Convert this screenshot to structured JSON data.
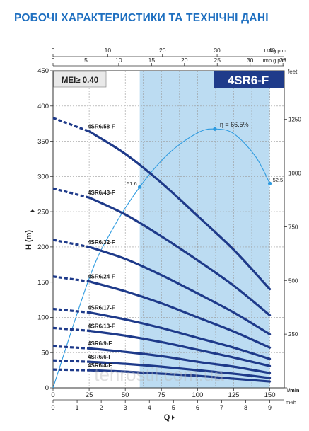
{
  "page": {
    "title": "РОБОЧІ ХАРАКТЕРИСТИКИ ТА ТЕХНІЧНІ ДАНІ",
    "watermark": "tehrostil.com.ua"
  },
  "chart_data": {
    "type": "line",
    "title": "4SR6-F",
    "badge": "MEI≥ 0.40",
    "ylabel": "H (m)",
    "xlabel": "Q",
    "ylim": [
      0,
      450
    ],
    "yticks": [
      0,
      50,
      100,
      150,
      200,
      250,
      300,
      350,
      400,
      450
    ],
    "xlim": [
      0,
      160
    ],
    "xticks": [
      0,
      25,
      50,
      75,
      100,
      125,
      150
    ],
    "xunit": "l/min",
    "x_m3h": {
      "unit": "m³/h",
      "ticks": [
        0,
        1,
        2,
        3,
        4,
        5,
        6,
        7,
        8,
        9
      ]
    },
    "x_usgpm": {
      "unit": "US g.p.m.",
      "ticks": [
        0,
        10,
        20,
        30,
        40
      ],
      "per_lpm": 0.2642
    },
    "x_impgpm": {
      "unit": "Imp g.p.m.",
      "ticks": [
        0,
        5,
        10,
        15,
        20,
        25,
        30,
        35
      ],
      "per_lpm": 0.22
    },
    "y_feet": {
      "unit": "feet",
      "ticks": [
        0,
        250,
        500,
        750,
        1000,
        1250
      ],
      "per_m": 3.2808
    },
    "recommended_range": [
      60,
      150
    ],
    "series": [
      {
        "name": "4SR6/58-F",
        "dashed_to": 25,
        "x": [
          0,
          25,
          50,
          75,
          100,
          125,
          150
        ],
        "y": [
          383,
          364,
          332,
          291,
          244,
          196,
          140
        ]
      },
      {
        "name": "4SR6/43-F",
        "dashed_to": 25,
        "x": [
          0,
          25,
          50,
          75,
          100,
          125,
          150
        ],
        "y": [
          283,
          270,
          246,
          215,
          181,
          145,
          103
        ]
      },
      {
        "name": "4SR6/32-F",
        "dashed_to": 25,
        "x": [
          0,
          25,
          50,
          75,
          100,
          125,
          150
        ],
        "y": [
          210,
          200,
          183,
          160,
          134,
          107,
          76
        ]
      },
      {
        "name": "4SR6/24-F",
        "dashed_to": 25,
        "x": [
          0,
          25,
          50,
          75,
          100,
          125,
          150
        ],
        "y": [
          158,
          151,
          137,
          120,
          100,
          80,
          57
        ]
      },
      {
        "name": "4SR6/17-F",
        "dashed_to": 25,
        "x": [
          0,
          25,
          50,
          75,
          100,
          125,
          150
        ],
        "y": [
          112,
          107,
          97,
          85,
          71,
          57,
          41
        ]
      },
      {
        "name": "4SR6/13-F",
        "dashed_to": 25,
        "x": [
          0,
          25,
          50,
          75,
          100,
          125,
          150
        ],
        "y": [
          85,
          81,
          74,
          65,
          54,
          43,
          31
        ]
      },
      {
        "name": "4SR6/9-F",
        "dashed_to": 25,
        "x": [
          0,
          25,
          50,
          75,
          100,
          125,
          150
        ],
        "y": [
          59,
          56,
          51,
          45,
          37,
          30,
          21
        ]
      },
      {
        "name": "4SR6/6-F",
        "dashed_to": 25,
        "x": [
          0,
          25,
          50,
          75,
          100,
          125,
          150
        ],
        "y": [
          39,
          37,
          34,
          30,
          25,
          20,
          14
        ]
      },
      {
        "name": "4SR6/4-F",
        "dashed_to": 25,
        "x": [
          0,
          25,
          50,
          75,
          100,
          125,
          150
        ],
        "y": [
          26,
          25,
          23,
          20,
          17,
          13,
          9
        ]
      }
    ],
    "efficiency": {
      "label": "η = 66.5%",
      "x": [
        0,
        25,
        40,
        60,
        80,
        100,
        112,
        125,
        140,
        150
      ],
      "eta": [
        0,
        28.1,
        40,
        51.6,
        60.2,
        65.5,
        66.5,
        65.3,
        59.5,
        52.5
      ],
      "scale_max_eta": 81.45,
      "markers": [
        {
          "x": 60,
          "eta": 51.6,
          "label": "51.6"
        },
        {
          "x": 112,
          "eta": 66.5,
          "label": ""
        },
        {
          "x": 150,
          "eta": 52.5,
          "label": "52.5"
        }
      ]
    },
    "colors": {
      "curve": "#1e3a8a",
      "efficiency": "#2e9be0",
      "band": "#bcdcf2",
      "axis": "#333333",
      "title_bg": "#1f3b8a",
      "page_title": "#1e6fc0"
    }
  }
}
